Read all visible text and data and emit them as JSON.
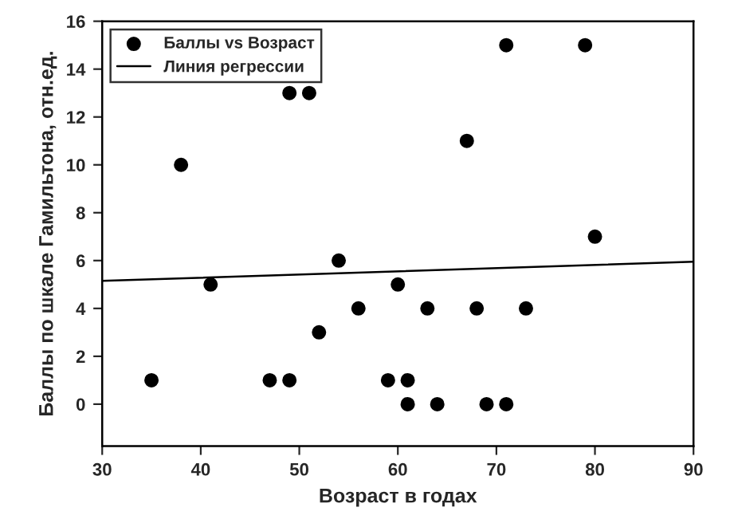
{
  "chart_data": {
    "type": "scatter",
    "xlabel": "Возраст в годах",
    "ylabel": "Баллы по шкале Гамильтона, отн.ед.",
    "series": [
      {
        "name": "Баллы vs Возраст",
        "color": "#000000",
        "marker": "circle",
        "x": [
          35,
          38,
          41,
          47,
          49,
          49,
          51,
          52,
          54,
          56,
          59,
          60,
          61,
          61,
          63,
          64,
          67,
          68,
          69,
          71,
          71,
          73,
          79,
          80
        ],
        "values": [
          1,
          10,
          5,
          1,
          13,
          1,
          13,
          3,
          6,
          4,
          1,
          5,
          1,
          0,
          4,
          0,
          11,
          4,
          0,
          15,
          0,
          4,
          15,
          7
        ]
      },
      {
        "name": "Линия регрессии",
        "type": "line",
        "color": "#000000",
        "line_style": "solid",
        "marker": "none",
        "x": [
          30,
          90
        ],
        "values": [
          5.15,
          5.95
        ]
      }
    ],
    "xlim": [
      30,
      90
    ],
    "xticks": [
      30,
      40,
      50,
      60,
      70,
      80,
      90
    ],
    "ylim": [
      -1.75,
      16
    ],
    "yticks": [
      0,
      2,
      4,
      6,
      8,
      10,
      12,
      14,
      16
    ],
    "grid": false,
    "legend": "top left"
  }
}
